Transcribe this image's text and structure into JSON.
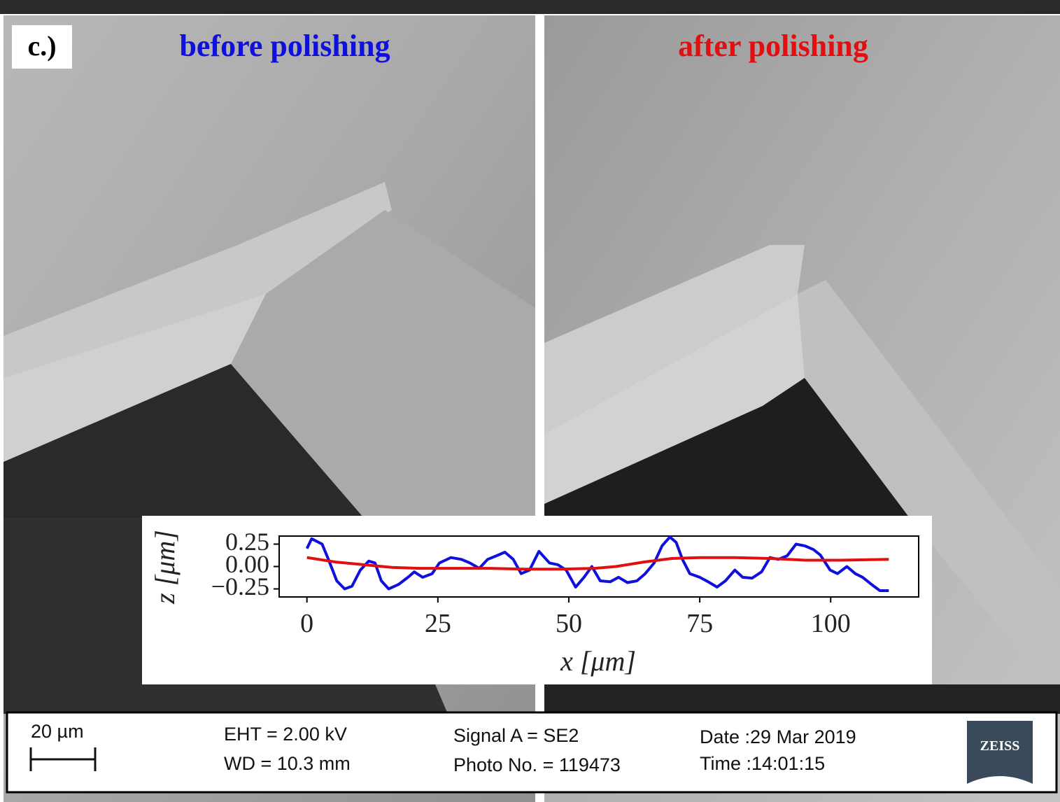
{
  "panel_label": "c.)",
  "chart_data": {
    "type": "line",
    "xlabel": "x [μm]",
    "ylabel": "z [μm]",
    "xlim": [
      -5.3,
      116.8
    ],
    "xticks": [
      0,
      25,
      50,
      75,
      100
    ],
    "ylim": [
      -0.34,
      0.34
    ],
    "yticks": [
      0.25,
      {
        "value": 0,
        "label": "0.00"
      },
      {
        "value": -0.25,
        "label": "−0.25"
      }
    ],
    "series": [
      {
        "name": "before polishing",
        "color": "#1010dd",
        "x": [
          0,
          0.9,
          2.9,
          4.1,
          5.7,
          7.2,
          8.6,
          10.2,
          11.8,
          13.0,
          14.2,
          15.6,
          17.5,
          19.3,
          20.5,
          22.1,
          23.9,
          25.3,
          27.5,
          29.5,
          31.1,
          32.9,
          34.5,
          36.2,
          37.8,
          39.4,
          40.9,
          42.5,
          44.3,
          46.3,
          47.9,
          49.5,
          51.3,
          52.9,
          54.4,
          56.0,
          57.9,
          59.5,
          61.2,
          63.0,
          64.6,
          66.3,
          67.8,
          69.3,
          70.5,
          71.7,
          73.1,
          75.0,
          76.6,
          78.3,
          79.9,
          81.7,
          83.2,
          85.0,
          86.8,
          88.4,
          90.0,
          91.7,
          93.4,
          95.1,
          96.7,
          98.0,
          99.9,
          101.3,
          103.1,
          104.7,
          106.1,
          107.8,
          109.4,
          111.1
        ],
        "values": [
          0.2,
          0.31,
          0.25,
          0.08,
          -0.16,
          -0.25,
          -0.22,
          -0.04,
          0.06,
          0.04,
          -0.16,
          -0.25,
          -0.2,
          -0.12,
          -0.06,
          -0.12,
          -0.08,
          0.04,
          0.1,
          0.08,
          0.04,
          -0.02,
          0.08,
          0.12,
          0.16,
          0.08,
          -0.08,
          -0.04,
          0.17,
          0.04,
          0.02,
          -0.04,
          -0.23,
          -0.12,
          0.0,
          -0.16,
          -0.17,
          -0.12,
          -0.18,
          -0.16,
          -0.08,
          0.04,
          0.23,
          0.33,
          0.27,
          0.08,
          -0.08,
          -0.12,
          -0.17,
          -0.23,
          -0.16,
          -0.04,
          -0.12,
          -0.13,
          -0.06,
          0.1,
          0.08,
          0.12,
          0.25,
          0.23,
          0.19,
          0.13,
          -0.04,
          -0.08,
          0.0,
          -0.08,
          -0.12,
          -0.2,
          -0.27,
          -0.27
        ]
      },
      {
        "name": "after polishing",
        "color": "#e01010",
        "x": [
          0,
          5.5,
          10.8,
          16.2,
          21.5,
          28.2,
          34.9,
          41.6,
          48.3,
          54.9,
          59.0,
          64.3,
          69.7,
          75.0,
          81.7,
          88.4,
          95.1,
          101.8,
          111.1
        ],
        "values": [
          0.1,
          0.05,
          0.02,
          -0.01,
          -0.02,
          -0.02,
          -0.02,
          -0.03,
          -0.03,
          -0.02,
          0.0,
          0.05,
          0.09,
          0.1,
          0.1,
          0.09,
          0.07,
          0.07,
          0.08
        ]
      }
    ]
  },
  "info_bar": {
    "scale": "20 µm",
    "eht": "EHT =  2.00 kV",
    "wd": "WD = 10.3 mm",
    "signal": "Signal A = SE2",
    "photo": "Photo No. = 119473",
    "date": "Date :29 Mar 2019",
    "time": "Time :14:01:15",
    "logo": "ZEISS"
  }
}
